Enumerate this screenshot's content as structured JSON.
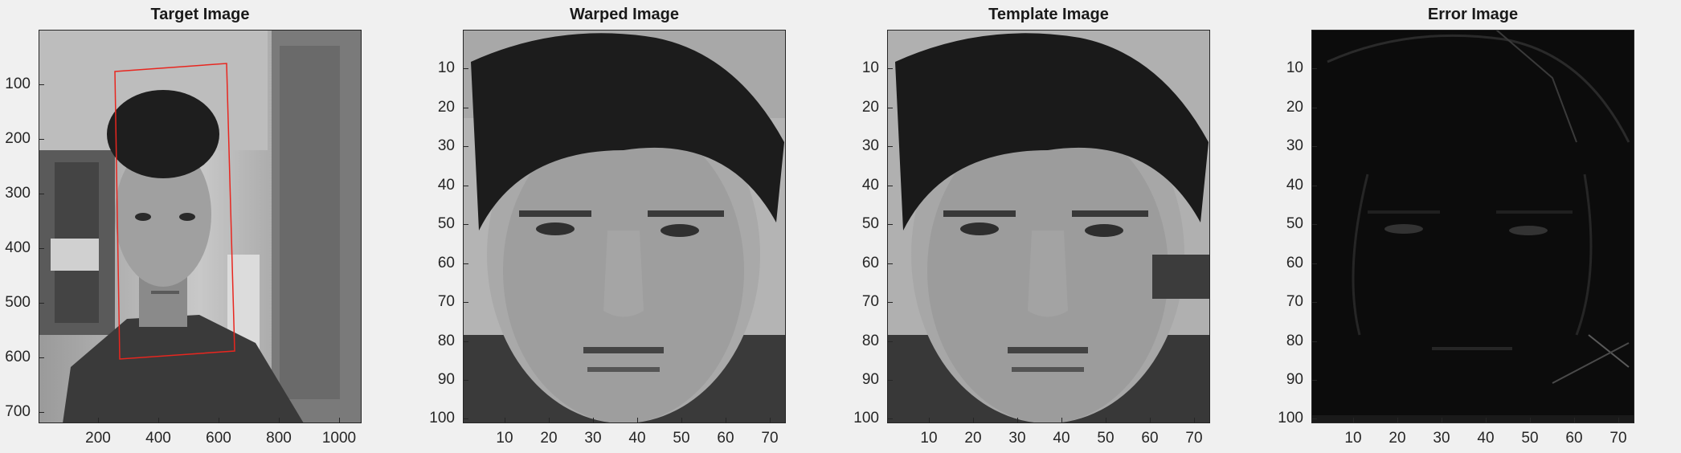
{
  "panels": [
    {
      "id": "target",
      "title": "Target Image",
      "yticks": [
        "100",
        "200",
        "300",
        "400",
        "500",
        "600",
        "700"
      ],
      "xticks": [
        "200",
        "400",
        "600",
        "800",
        "1000"
      ]
    },
    {
      "id": "warped",
      "title": "Warped Image",
      "yticks": [
        "10",
        "20",
        "30",
        "40",
        "50",
        "60",
        "70",
        "80",
        "90",
        "100"
      ],
      "xticks": [
        "10",
        "20",
        "30",
        "40",
        "50",
        "60",
        "70"
      ]
    },
    {
      "id": "template",
      "title": "Template Image",
      "yticks": [
        "10",
        "20",
        "30",
        "40",
        "50",
        "60",
        "70",
        "80",
        "90",
        "100"
      ],
      "xticks": [
        "10",
        "20",
        "30",
        "40",
        "50",
        "60",
        "70"
      ]
    },
    {
      "id": "error",
      "title": "Error Image",
      "yticks": [
        "10",
        "20",
        "30",
        "40",
        "50",
        "60",
        "70",
        "80",
        "90",
        "100"
      ],
      "xticks": [
        "10",
        "20",
        "30",
        "40",
        "50",
        "60",
        "70"
      ]
    }
  ],
  "colors": {
    "tracking_box": "#e8261f",
    "background": "#f0f0f0"
  }
}
